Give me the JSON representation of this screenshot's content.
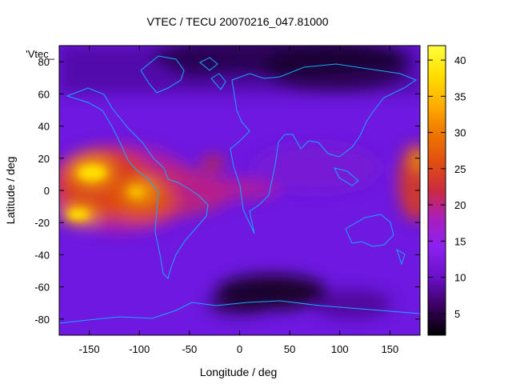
{
  "chart_data": {
    "type": "heatmap",
    "title": "VTEC / TECU 20070216_047.81000",
    "xlabel": "Longitude / deg",
    "ylabel": "Latitude / deg",
    "key_label": "'Vtec_",
    "xlim": [
      -180,
      180
    ],
    "ylim": [
      -90,
      90
    ],
    "x_ticks": [
      -150,
      -100,
      -50,
      0,
      50,
      100,
      150
    ],
    "y_ticks": [
      -80,
      -60,
      -40,
      -20,
      0,
      20,
      40,
      60,
      80
    ],
    "colorbar": {
      "range": [
        2,
        42
      ],
      "ticks": [
        5,
        10,
        15,
        20,
        25,
        30,
        35,
        40
      ],
      "colors": [
        "#000000",
        "#3a0060",
        "#6a10c8",
        "#8a20f0",
        "#a81ec0",
        "#cc2a40",
        "#e05010",
        "#f07800",
        "#ffb000",
        "#ffe000",
        "#ffff40"
      ]
    },
    "features": [
      {
        "name": "equatorial-anomaly-north",
        "lon": -145,
        "lat": 12,
        "value": 42
      },
      {
        "name": "equatorial-anomaly-south",
        "lon": -155,
        "lat": -15,
        "value": 40
      },
      {
        "name": "central-pacific-peak",
        "lon": -100,
        "lat": 0,
        "value": 34
      },
      {
        "name": "atlantic-peak",
        "lon": -28,
        "lat": 16,
        "value": 25
      },
      {
        "name": "western-pacific-edge",
        "lon": 178,
        "lat": 2,
        "value": 27
      },
      {
        "name": "north-asia-low",
        "lon": 90,
        "lat": 78,
        "value": 3
      },
      {
        "name": "antarctic-low",
        "lon": 30,
        "lat": -68,
        "value": 3
      }
    ],
    "grid": false,
    "coastlines": true
  }
}
